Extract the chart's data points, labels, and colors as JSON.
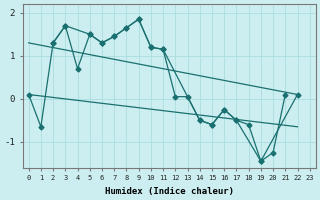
{
  "xlabel": "Humidex (Indice chaleur)",
  "bg_color": "#cceef0",
  "line_color": "#1a7070",
  "grid_color": "#aadddd",
  "xlim": [
    -0.5,
    23.5
  ],
  "ylim": [
    -1.6,
    2.2
  ],
  "yticks": [
    -1,
    0,
    1,
    2
  ],
  "xticks": [
    0,
    1,
    2,
    3,
    4,
    5,
    6,
    7,
    8,
    9,
    10,
    11,
    12,
    13,
    14,
    15,
    16,
    17,
    18,
    19,
    20,
    21,
    22,
    23
  ],
  "line1_x": [
    0,
    1,
    2,
    3,
    4,
    5,
    6,
    7,
    8,
    9,
    10,
    11,
    12,
    13,
    14,
    15,
    16,
    17,
    18,
    19,
    20,
    21
  ],
  "line1_y": [
    0.1,
    -0.65,
    1.3,
    1.7,
    0.7,
    1.5,
    1.3,
    1.45,
    1.65,
    1.85,
    1.2,
    1.15,
    0.05,
    0.05,
    -0.5,
    -0.6,
    -0.25,
    -0.5,
    -0.6,
    -1.45,
    -1.25,
    0.1
  ],
  "line2_x": [
    2,
    3,
    5,
    6,
    7,
    8,
    9,
    10,
    11,
    14,
    15,
    16,
    17,
    19,
    22
  ],
  "line2_y": [
    1.3,
    1.7,
    1.5,
    1.3,
    1.45,
    1.65,
    1.85,
    1.2,
    1.15,
    -0.5,
    -0.6,
    -0.25,
    -0.5,
    -1.45,
    0.1
  ],
  "line4_x": [
    0,
    22
  ],
  "line4_y": [
    1.3,
    0.1
  ],
  "line5_x": [
    0,
    22
  ],
  "line5_y": [
    0.1,
    -0.65
  ]
}
